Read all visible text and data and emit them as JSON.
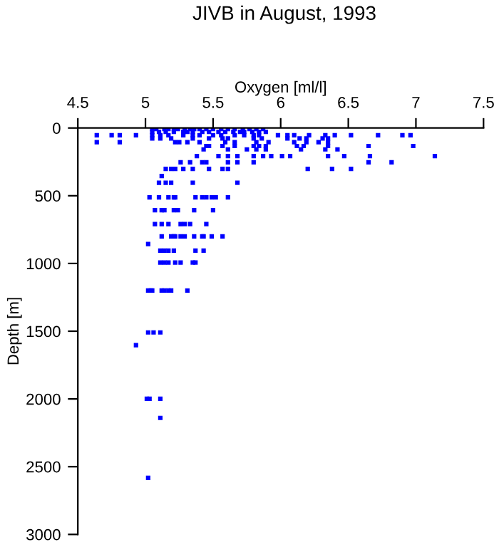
{
  "chart_data": {
    "type": "scatter",
    "title": "JIVB in August, 1993",
    "xlabel": "Oxygen [ml/l]",
    "ylabel": "Depth [m]",
    "xlim": [
      4.5,
      7.5
    ],
    "xticks": [
      4.5,
      5,
      5.5,
      6,
      6.5,
      7,
      7.5
    ],
    "ylim": [
      3000,
      0
    ],
    "yticks": [
      0,
      500,
      1000,
      1500,
      2000,
      2500,
      3000
    ],
    "marker": "square",
    "series": [
      {
        "color": "#0000ff",
        "x": [
          5.05,
          5.08,
          5.14,
          5.17,
          5.21,
          5.24,
          5.29,
          5.33,
          5.36,
          5.4,
          5.45,
          5.5,
          5.56,
          5.61,
          5.66,
          5.72,
          5.77,
          5.82,
          5.87,
          5.05,
          5.1,
          5.15,
          5.21,
          5.28,
          5.31,
          5.35,
          5.42,
          5.47,
          5.54,
          5.59,
          5.65,
          5.7,
          5.73,
          5.79,
          5.84,
          5.89,
          4.64,
          4.75,
          4.81,
          4.93,
          5.05,
          5.11,
          5.17,
          5.28,
          5.35,
          5.4,
          5.5,
          5.56,
          5.66,
          5.73,
          5.8,
          5.84,
          5.98,
          6.05,
          6.1,
          6.21,
          6.33,
          6.4,
          6.52,
          6.72,
          6.9,
          6.96,
          5.05,
          5.11,
          5.19,
          5.35,
          5.47,
          5.57,
          5.61,
          5.8,
          5.86,
          6.05,
          6.14,
          6.19,
          6.31,
          6.35,
          4.64,
          4.81,
          5.22,
          5.25,
          5.31,
          5.4,
          5.59,
          5.66,
          5.82,
          5.91,
          6.1,
          6.19,
          6.28,
          6.35,
          5.45,
          5.47,
          5.57,
          5.66,
          5.8,
          5.84,
          5.89,
          6.12,
          6.17,
          6.35,
          6.65,
          6.98,
          5.43,
          5.61,
          5.75,
          5.82,
          5.89,
          6.15,
          6.33,
          6.42,
          5.38,
          5.54,
          5.61,
          5.68,
          5.8,
          5.87,
          5.93,
          6.01,
          6.07,
          6.35,
          6.47,
          6.66,
          7.14,
          5.26,
          5.33,
          5.42,
          5.45,
          5.61,
          5.68,
          5.8,
          6.65,
          6.82,
          5.15,
          5.19,
          5.22,
          5.28,
          5.35,
          5.47,
          5.57,
          5.61,
          6.2,
          6.38,
          6.52,
          5.12,
          5.1,
          5.15,
          5.19,
          5.35,
          5.68,
          5.03,
          5.1,
          5.17,
          5.21,
          5.22,
          5.37,
          5.42,
          5.45,
          5.49,
          5.52,
          5.61,
          5.07,
          5.12,
          5.14,
          5.21,
          5.24,
          5.36,
          5.5,
          5.07,
          5.12,
          5.17,
          5.26,
          5.29,
          5.33,
          5.45,
          5.12,
          5.19,
          5.21,
          5.22,
          5.26,
          5.29,
          5.36,
          5.42,
          5.43,
          5.49,
          5.57,
          5.02,
          5.11,
          5.14,
          5.17,
          5.21,
          5.37,
          5.43,
          5.11,
          5.14,
          5.17,
          5.22,
          5.26,
          5.35,
          5.37,
          5.02,
          5.04,
          5.05,
          5.12,
          5.14,
          5.17,
          5.19,
          5.31,
          5.02,
          5.06,
          5.11,
          4.93,
          5.01,
          5.03,
          5.11,
          5.11,
          5.02
        ],
        "values": [
          7,
          7,
          7,
          7,
          7,
          7,
          7,
          7,
          7,
          7,
          7,
          7,
          7,
          7,
          7,
          7,
          7,
          7,
          7,
          28,
          28,
          28,
          28,
          28,
          28,
          28,
          28,
          28,
          28,
          28,
          28,
          28,
          28,
          28,
          28,
          28,
          53,
          53,
          53,
          53,
          53,
          53,
          53,
          53,
          53,
          53,
          53,
          53,
          53,
          53,
          53,
          53,
          53,
          53,
          53,
          53,
          53,
          53,
          53,
          53,
          53,
          53,
          77,
          77,
          77,
          77,
          77,
          77,
          77,
          77,
          77,
          77,
          77,
          77,
          77,
          77,
          105,
          105,
          105,
          105,
          105,
          105,
          105,
          105,
          105,
          105,
          105,
          105,
          105,
          105,
          133,
          133,
          133,
          133,
          133,
          133,
          133,
          133,
          133,
          133,
          133,
          133,
          158,
          158,
          158,
          158,
          158,
          158,
          158,
          158,
          207,
          207,
          207,
          207,
          207,
          207,
          207,
          207,
          207,
          207,
          207,
          207,
          207,
          253,
          253,
          253,
          253,
          253,
          253,
          253,
          253,
          253,
          302,
          302,
          302,
          302,
          302,
          302,
          302,
          302,
          302,
          302,
          302,
          354,
          404,
          404,
          404,
          404,
          404,
          512,
          512,
          512,
          512,
          512,
          512,
          512,
          512,
          512,
          512,
          512,
          607,
          607,
          607,
          607,
          607,
          607,
          607,
          709,
          709,
          709,
          709,
          709,
          709,
          709,
          800,
          800,
          800,
          800,
          800,
          800,
          800,
          800,
          800,
          800,
          800,
          856,
          905,
          905,
          905,
          905,
          905,
          905,
          993,
          993,
          993,
          993,
          993,
          993,
          993,
          1200,
          1200,
          1200,
          1200,
          1200,
          1200,
          1200,
          1200,
          1509,
          1509,
          1509,
          1603,
          1999,
          1999,
          1999,
          2140,
          2582
        ]
      }
    ]
  }
}
